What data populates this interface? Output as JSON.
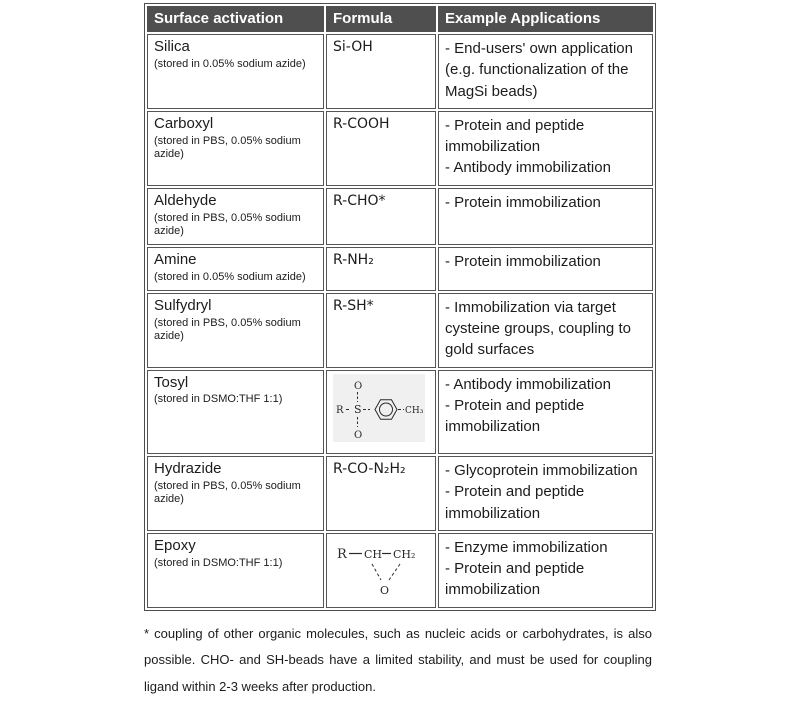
{
  "colors": {
    "header_bg": "#4f4f4f",
    "header_text": "#ffffff",
    "border": "#4d4d4d",
    "body_text": "#1c1c1c",
    "tosyl_image_bg": "#f0f0f0"
  },
  "table": {
    "header": {
      "columns": [
        "Surface activation",
        "Formula",
        "Example Applications"
      ]
    },
    "rows": [
      {
        "name": "Silica",
        "storage": "(stored in 0.05% sodium azide)",
        "formula_type": "text",
        "formula": "Si-OH",
        "applications": [
          "- End-users' own application (e.g. functionalization of the MagSi beads)"
        ]
      },
      {
        "name": "Carboxyl",
        "storage": "(stored in PBS, 0.05% sodium azide)",
        "formula_type": "text",
        "formula": "R-COOH",
        "applications": [
          "- Protein and peptide immobilization",
          "- Antibody immobilization"
        ]
      },
      {
        "name": "Aldehyde",
        "storage": "(stored in PBS, 0.05% sodium azide)",
        "formula_type": "text",
        "formula": "R-CHO*",
        "applications": [
          "- Protein immobilization"
        ]
      },
      {
        "name": "Amine",
        "storage": "(stored in 0.05% sodium azide)",
        "formula_type": "text",
        "formula": "R-NH₂",
        "applications": [
          "- Protein immobilization"
        ]
      },
      {
        "name": "Sulfydryl",
        "storage": "(stored in PBS, 0.05% sodium azide)",
        "formula_type": "text",
        "formula": "R-SH*",
        "applications": [
          "- Immobilization via target cysteine groups, coupling to gold surfaces"
        ]
      },
      {
        "name": "Tosyl",
        "storage": "(stored in DSMO:THF 1:1)",
        "formula_type": "structure",
        "structure": "tosyl",
        "applications": [
          "- Antibody immobilization",
          "- Protein and peptide immobilization"
        ]
      },
      {
        "name": "Hydrazide",
        "storage": "(stored in PBS, 0.05% sodium azide)",
        "formula_type": "text",
        "formula": "R-CO-N₂H₂",
        "applications": [
          "- Glycoprotein immobilization",
          "- Protein and peptide immobilization"
        ]
      },
      {
        "name": "Epoxy",
        "storage": "(stored in DSMO:THF 1:1)",
        "formula_type": "structure",
        "structure": "epoxy",
        "applications": [
          "- Enzyme immobilization",
          "- Protein and peptide immobilization"
        ]
      }
    ]
  },
  "structures": {
    "tosyl": {
      "r": "R",
      "s": "S",
      "o_top": "O",
      "o_bottom": "O",
      "ch3": "CH₃"
    },
    "epoxy": {
      "r": "R",
      "ch": "CH",
      "ch2": "CH₂",
      "o": "O"
    }
  },
  "footnote": "* coupling of other organic molecules, such as nucleic acids or carbohydrates, is also possible. CHO- and SH-beads have a limited stability, and must be used for coupling ligand within 2-3 weeks after production."
}
